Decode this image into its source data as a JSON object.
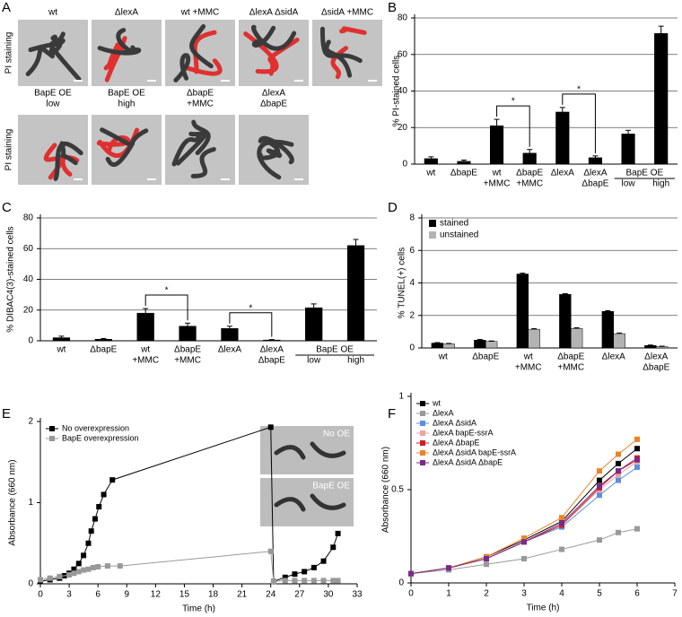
{
  "panel_a": {
    "panel_label": "A",
    "rows": [
      {
        "row_label": "PI staining",
        "images": [
          {
            "label": [
              "wt"
            ]
          },
          {
            "label": [
              "ΔlexA"
            ]
          },
          {
            "label": [
              "wt +MMC"
            ]
          },
          {
            "label": [
              "ΔlexA ΔsidA"
            ]
          },
          {
            "label": [
              "ΔsidA +MMC"
            ]
          }
        ]
      },
      {
        "row_label": "PI staining",
        "images": [
          {
            "label": [
              "BapE OE",
              "low"
            ]
          },
          {
            "label": [
              "BapE OE",
              "high"
            ]
          },
          {
            "label": [
              "ΔbapE",
              "+MMC"
            ]
          },
          {
            "label": [
              "ΔlexA",
              "ΔbapE"
            ]
          }
        ]
      }
    ]
  },
  "chart_data": [
    {
      "type": "bar",
      "panel_label": "B",
      "y_label": "% PI-stained cells",
      "categories": [
        [
          "wt"
        ],
        [
          "ΔbapE"
        ],
        [
          "wt",
          "+MMC"
        ],
        [
          "ΔbapE",
          "+MMC"
        ],
        [
          "ΔlexA"
        ],
        [
          "ΔlexA",
          "ΔbapE"
        ],
        [
          "low"
        ],
        [
          "high"
        ]
      ],
      "values": [
        3,
        1.5,
        21,
        6,
        28.5,
        3.5,
        16.5,
        71.5
      ],
      "error": [
        1,
        0.7,
        3.5,
        2,
        2.5,
        1,
        2,
        4
      ],
      "color": "#000000",
      "group": {
        "label": "BapE OE",
        "from": 6,
        "to": 7
      },
      "brackets": [
        {
          "label": "*",
          "from": 2,
          "to": 3
        },
        {
          "label": "*",
          "from": 4,
          "to": 5
        }
      ],
      "ylim": [
        0,
        80
      ],
      "yticks": [
        0,
        20,
        40,
        60,
        80
      ],
      "grid": true
    },
    {
      "type": "bar",
      "panel_label": "C",
      "y_label": "%  DIBAC4(3)-stained cells",
      "categories": [
        [
          "wt"
        ],
        [
          "ΔbapE"
        ],
        [
          "wt",
          "+MMC"
        ],
        [
          "ΔbapE",
          "+MMC"
        ],
        [
          "ΔlexA"
        ],
        [
          "ΔlexA",
          "ΔbapE"
        ],
        [
          "low"
        ],
        [
          "high"
        ]
      ],
      "values": [
        2,
        1,
        18,
        9.5,
        8,
        0.5,
        21.5,
        62
      ],
      "error": [
        1,
        0.5,
        3,
        2,
        1.5,
        0.3,
        2.5,
        4
      ],
      "color": "#000000",
      "group": {
        "label": "BapE OE",
        "from": 6,
        "to": 7
      },
      "brackets": [
        {
          "label": "*",
          "from": 2,
          "to": 3
        },
        {
          "label": "*",
          "from": 4,
          "to": 5
        }
      ],
      "ylim": [
        0,
        80
      ],
      "yticks": [
        0,
        20,
        40,
        60,
        80
      ],
      "grid": true
    },
    {
      "type": "bar",
      "panel_label": "D",
      "y_label": "% TUNEL(+) cells",
      "categories": [
        [
          "wt"
        ],
        [
          "ΔbapE"
        ],
        [
          "wt",
          "+MMC"
        ],
        [
          "ΔbapE",
          "+MMC"
        ],
        [
          "ΔlexA"
        ],
        [
          "ΔlexA",
          "ΔbapE"
        ]
      ],
      "series": [
        {
          "name": "stained",
          "color": "#000000",
          "values": [
            0.3,
            0.48,
            4.55,
            3.3,
            2.25,
            0.15
          ],
          "error": [
            0.03,
            0.04,
            0.05,
            0.04,
            0.04,
            0.03
          ]
        },
        {
          "name": "unstained",
          "color": "#b3b3b3",
          "values": [
            0.25,
            0.4,
            1.15,
            1.2,
            0.88,
            0.08
          ],
          "error": [
            0.03,
            0.03,
            0.04,
            0.04,
            0.04,
            0.03
          ]
        }
      ],
      "legend": "top-left",
      "ylim": [
        0,
        8
      ],
      "yticks": [
        0,
        2,
        4,
        6,
        8
      ],
      "grid": true
    },
    {
      "type": "line",
      "panel_label": "E",
      "x_label": "Time (h)",
      "y_label": "Absorbance (660 nm)",
      "series": [
        {
          "name": "No overexpression",
          "color": "#000000",
          "x": [
            0,
            1,
            2,
            2.5,
            3,
            3.5,
            4,
            4.5,
            5,
            5.3,
            5.7,
            6.1,
            6.6,
            7.5,
            24,
            24.3,
            25.5,
            26.5,
            27.5,
            28.5,
            29.5,
            30.5,
            31
          ],
          "values": [
            0.03,
            0.05,
            0.07,
            0.1,
            0.13,
            0.18,
            0.25,
            0.35,
            0.5,
            0.65,
            0.8,
            0.95,
            1.1,
            1.28,
            1.93,
            0.03,
            0.08,
            0.12,
            0.15,
            0.2,
            0.28,
            0.45,
            0.62
          ]
        },
        {
          "name": "BapE overexpression",
          "color": "#999999",
          "x": [
            0,
            1,
            2,
            3,
            3.5,
            4,
            4.5,
            5,
            5.5,
            6,
            7,
            8.3,
            24,
            24.3,
            25.5,
            26.5,
            27.5,
            28.5,
            29.5,
            30.5,
            31
          ],
          "values": [
            0.05,
            0.07,
            0.09,
            0.11,
            0.13,
            0.15,
            0.17,
            0.18,
            0.2,
            0.21,
            0.22,
            0.22,
            0.4,
            0.03,
            0.04,
            0.04,
            0.04,
            0.04,
            0.04,
            0.04,
            0.04
          ]
        }
      ],
      "insets": [
        {
          "label": "No OE"
        },
        {
          "label": "BapE OE"
        }
      ],
      "legend": "top-left",
      "xlim": [
        0,
        33
      ],
      "xticks": [
        0,
        3,
        6,
        9,
        12,
        15,
        18,
        21,
        24,
        27,
        30,
        33
      ],
      "ylim": [
        0,
        2
      ],
      "yticks": [
        0,
        1,
        2
      ]
    },
    {
      "type": "line",
      "panel_label": "F",
      "x_label": "Time (h)",
      "y_label": "Absorbance (660 nm)",
      "x": [
        0,
        1,
        2,
        3,
        4,
        5,
        5.5,
        6
      ],
      "series": [
        {
          "name": "wt",
          "color": "#000000",
          "values": [
            0.05,
            0.08,
            0.14,
            0.23,
            0.33,
            0.55,
            0.64,
            0.72
          ]
        },
        {
          "name": "ΔlexA",
          "color": "#999999",
          "values": [
            0.05,
            0.07,
            0.1,
            0.13,
            0.18,
            0.23,
            0.27,
            0.29
          ]
        },
        {
          "name": "ΔlexA ΔsidA",
          "color": "#5b8fe0",
          "values": [
            0.05,
            0.08,
            0.13,
            0.22,
            0.3,
            0.47,
            0.55,
            0.62
          ]
        },
        {
          "name": "ΔlexA bapE-ssrA",
          "color": "#f0a0a0",
          "values": [
            0.05,
            0.08,
            0.13,
            0.22,
            0.31,
            0.5,
            0.58,
            0.65
          ]
        },
        {
          "name": "ΔlexA ΔbapE",
          "color": "#d02020",
          "values": [
            0.05,
            0.08,
            0.13,
            0.22,
            0.31,
            0.51,
            0.6,
            0.67
          ]
        },
        {
          "name": "ΔlexA ΔsidA bapE-ssrA",
          "color": "#e8852a",
          "values": [
            0.05,
            0.08,
            0.14,
            0.24,
            0.35,
            0.6,
            0.69,
            0.77
          ]
        },
        {
          "name": "ΔlexA ΔsidA ΔbapE",
          "color": "#7a2a8a",
          "values": [
            0.05,
            0.08,
            0.13,
            0.22,
            0.32,
            0.52,
            0.6,
            0.66
          ]
        }
      ],
      "legend": "top-left",
      "xlim": [
        0,
        7
      ],
      "xticks": [
        0,
        1,
        2,
        3,
        4,
        5,
        6,
        7
      ],
      "ylim": [
        0,
        1
      ],
      "yticks": [
        0,
        0.5,
        1
      ]
    }
  ]
}
